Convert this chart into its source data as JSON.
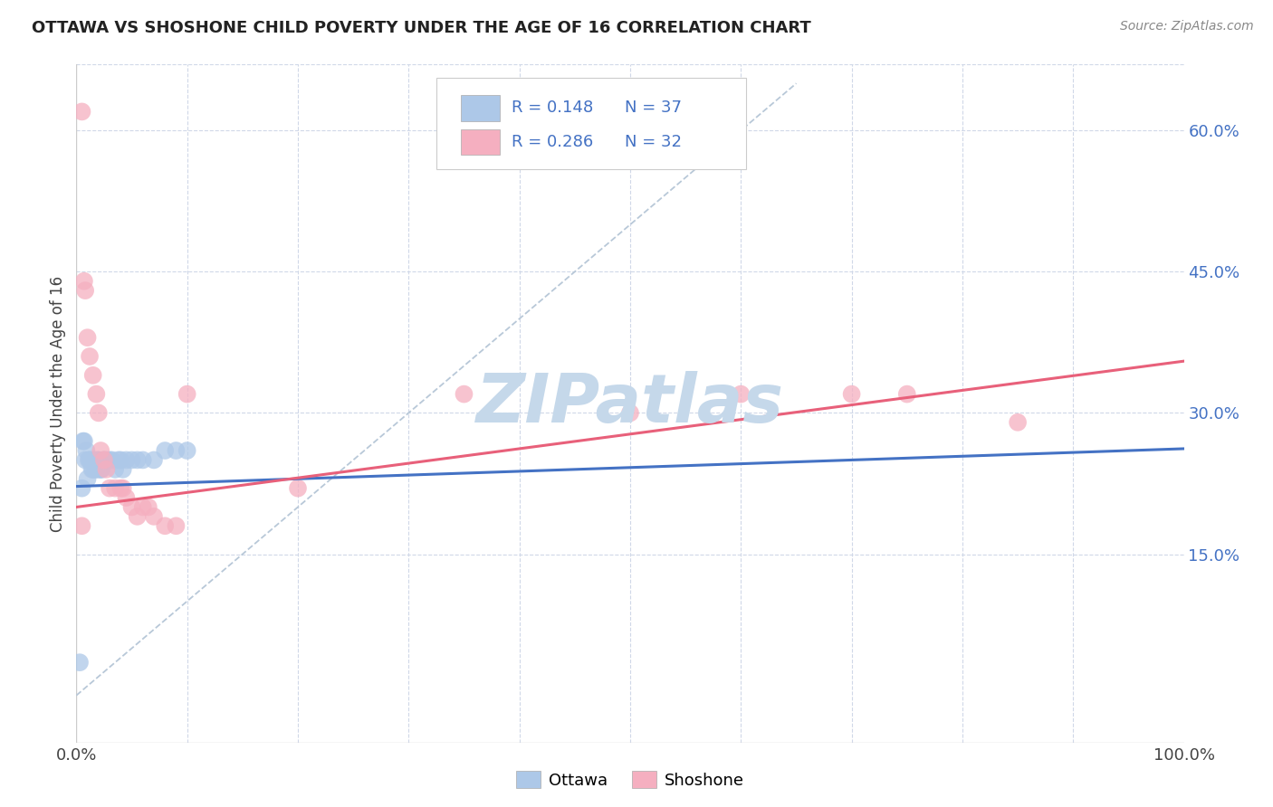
{
  "title": "OTTAWA VS SHOSHONE CHILD POVERTY UNDER THE AGE OF 16 CORRELATION CHART",
  "source": "Source: ZipAtlas.com",
  "ylabel": "Child Poverty Under the Age of 16",
  "xlim": [
    0.0,
    1.0
  ],
  "ylim": [
    -0.05,
    0.67
  ],
  "xticks": [
    0.0,
    0.1,
    0.2,
    0.3,
    0.4,
    0.5,
    0.6,
    0.7,
    0.8,
    0.9,
    1.0
  ],
  "xticklabels": [
    "0.0%",
    "",
    "",
    "",
    "",
    "",
    "",
    "",
    "",
    "",
    "100.0%"
  ],
  "ytick_positions": [
    0.15,
    0.3,
    0.45,
    0.6
  ],
  "ytick_labels": [
    "15.0%",
    "30.0%",
    "45.0%",
    "60.0%"
  ],
  "ottawa_R": "0.148",
  "ottawa_N": "37",
  "shoshone_R": "0.286",
  "shoshone_N": "32",
  "ottawa_color": "#adc8e8",
  "shoshone_color": "#f5afc0",
  "ottawa_line_color": "#4472c4",
  "shoshone_line_color": "#e8607a",
  "ref_line_color": "#b8c8d8",
  "watermark": "ZIPatlas",
  "watermark_color": "#c5d8ea",
  "legend_text_color": "#4472c4",
  "ottawa_x": [
    0.003,
    0.005,
    0.006,
    0.007,
    0.008,
    0.009,
    0.01,
    0.011,
    0.012,
    0.013,
    0.014,
    0.015,
    0.016,
    0.017,
    0.018,
    0.019,
    0.02,
    0.021,
    0.022,
    0.023,
    0.024,
    0.025,
    0.027,
    0.03,
    0.032,
    0.035,
    0.038,
    0.04,
    0.042,
    0.045,
    0.05,
    0.055,
    0.06,
    0.07,
    0.08,
    0.09,
    0.1
  ],
  "ottawa_y": [
    0.035,
    0.22,
    0.27,
    0.27,
    0.25,
    0.26,
    0.23,
    0.25,
    0.25,
    0.25,
    0.24,
    0.24,
    0.25,
    0.24,
    0.24,
    0.25,
    0.25,
    0.24,
    0.24,
    0.24,
    0.25,
    0.25,
    0.25,
    0.25,
    0.25,
    0.24,
    0.25,
    0.25,
    0.24,
    0.25,
    0.25,
    0.25,
    0.25,
    0.25,
    0.26,
    0.26,
    0.26
  ],
  "shoshone_x": [
    0.005,
    0.007,
    0.008,
    0.01,
    0.012,
    0.015,
    0.018,
    0.02,
    0.022,
    0.025,
    0.027,
    0.03,
    0.035,
    0.04,
    0.042,
    0.045,
    0.05,
    0.055,
    0.06,
    0.065,
    0.07,
    0.08,
    0.09,
    0.1,
    0.2,
    0.35,
    0.5,
    0.6,
    0.7,
    0.75,
    0.85,
    0.005
  ],
  "shoshone_y": [
    0.62,
    0.44,
    0.43,
    0.38,
    0.36,
    0.34,
    0.32,
    0.3,
    0.26,
    0.25,
    0.24,
    0.22,
    0.22,
    0.22,
    0.22,
    0.21,
    0.2,
    0.19,
    0.2,
    0.2,
    0.19,
    0.18,
    0.18,
    0.32,
    0.22,
    0.32,
    0.3,
    0.32,
    0.32,
    0.32,
    0.29,
    0.18
  ],
  "ref_line_x": [
    0.0,
    0.65
  ],
  "ref_line_y": [
    0.0,
    0.65
  ]
}
